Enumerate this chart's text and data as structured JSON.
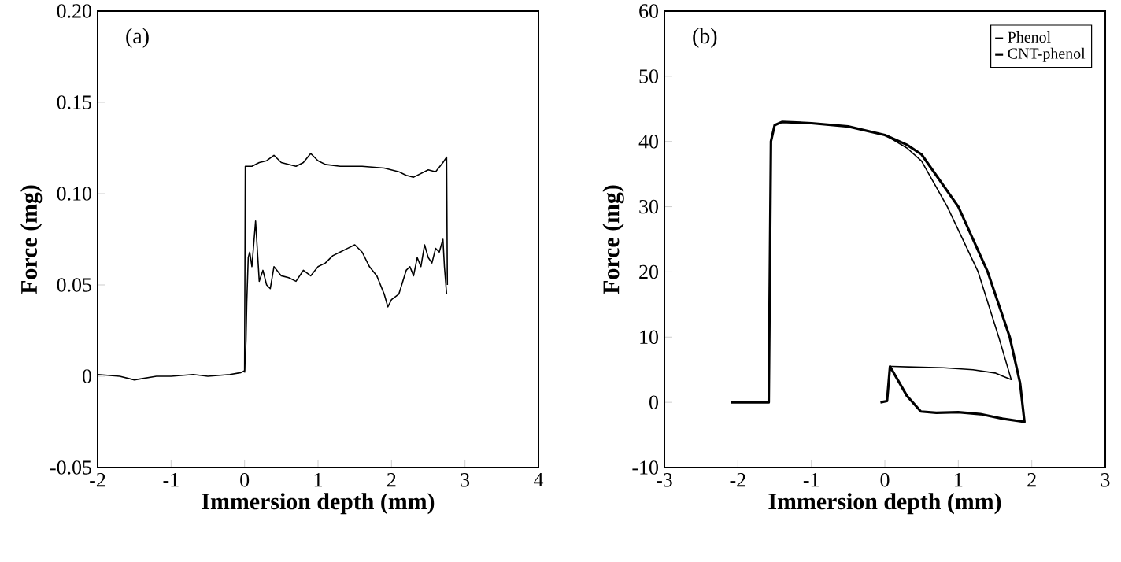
{
  "chart_data": [
    {
      "type": "line",
      "xlabel": "Immersion depth (mm)",
      "ylabel": "Force (mg)",
      "annotations": [
        "(a)"
      ],
      "xlim": [
        -2,
        4
      ],
      "ylim": [
        -0.05,
        0.2
      ],
      "xticks": [
        -2,
        -1,
        0,
        1,
        2,
        3,
        4
      ],
      "yticks": [
        -0.05,
        0,
        0.05,
        {
          "value": 0.1,
          "label": "0.10"
        },
        0.15,
        {
          "value": 0.2,
          "label": "0.20"
        }
      ],
      "marker": "none",
      "line_style": "solid",
      "legend": false,
      "series": [
        {
          "color": "#000000",
          "x": [
            -2,
            -1.7,
            -1.5,
            -1.2,
            -1,
            -0.7,
            -0.5,
            -0.2,
            -0.05,
            0,
            0.01,
            0.1,
            0.2,
            0.3,
            0.4,
            0.5,
            0.6,
            0.7,
            0.8,
            0.9,
            1.0,
            1.1,
            1.3,
            1.6,
            1.9,
            2.1,
            2.2,
            2.3,
            2.4,
            2.5,
            2.6,
            2.7,
            2.75,
            2.76
          ],
          "values": [
            0.001,
            0,
            -0.002,
            0,
            0,
            0.001,
            0,
            0.001,
            0.002,
            0.003,
            0.115,
            0.115,
            0.117,
            0.118,
            0.121,
            0.117,
            0.116,
            0.115,
            0.117,
            0.122,
            0.118,
            0.116,
            0.115,
            0.115,
            0.114,
            0.112,
            0.11,
            0.109,
            0.111,
            0.113,
            0.112,
            0.117,
            0.12,
            0.05
          ]
        },
        {
          "color": "#000000",
          "x": [
            0,
            0.02,
            0.03,
            0.05,
            0.07,
            0.1,
            0.12,
            0.15,
            0.2,
            0.25,
            0.3,
            0.35,
            0.4,
            0.5,
            0.6,
            0.7,
            0.8,
            0.9,
            1.0,
            1.1,
            1.2,
            1.3,
            1.4,
            1.5,
            1.6,
            1.7,
            1.8,
            1.85,
            1.9,
            1.95,
            2.0,
            2.1,
            2.2,
            2.25,
            2.3,
            2.35,
            2.4,
            2.45,
            2.5,
            2.55,
            2.6,
            2.65,
            2.7,
            2.72,
            2.75
          ],
          "values": [
            0.002,
            0.02,
            0.04,
            0.065,
            0.068,
            0.06,
            0.07,
            0.085,
            0.052,
            0.058,
            0.05,
            0.048,
            0.06,
            0.055,
            0.054,
            0.052,
            0.058,
            0.055,
            0.06,
            0.062,
            0.066,
            0.068,
            0.07,
            0.072,
            0.068,
            0.06,
            0.055,
            0.05,
            0.045,
            0.038,
            0.042,
            0.045,
            0.058,
            0.06,
            0.055,
            0.065,
            0.06,
            0.072,
            0.065,
            0.062,
            0.07,
            0.068,
            0.075,
            0.06,
            0.045
          ]
        }
      ]
    },
    {
      "type": "line",
      "xlabel": "Immersion depth (mm)",
      "ylabel": "Force (mg)",
      "annotations": [
        "(b)"
      ],
      "xlim": [
        -3,
        3
      ],
      "ylim": [
        -10,
        60
      ],
      "xticks": [
        -3,
        -2,
        -1,
        0,
        1,
        2,
        3
      ],
      "yticks": [
        -10,
        0,
        10,
        20,
        30,
        40,
        50,
        60
      ],
      "marker": "none",
      "line_style": "solid",
      "legend": "top right",
      "series": [
        {
          "name": "Phenol",
          "color": "#000000",
          "x": [
            -2.1,
            -1.58,
            -1.55,
            -1.5,
            -1.4,
            -1,
            -0.5,
            0,
            0.3,
            0.5,
            0.85,
            1.27,
            1.55,
            1.72,
            1.5,
            1.2,
            0.8,
            0.4,
            0.1,
            0.07
          ],
          "values": [
            0,
            0,
            40,
            42.5,
            43,
            42.8,
            42.3,
            41,
            39,
            37,
            30,
            20,
            10,
            3.5,
            4.5,
            5,
            5.3,
            5.4,
            5.5,
            5.5
          ]
        },
        {
          "name": "CNT-phenol",
          "color": "#000000",
          "x": [
            -2.1,
            -1.58,
            -1.55,
            -1.5,
            -1.4,
            -1,
            -0.5,
            0,
            0.3,
            0.5,
            1.0,
            1.4,
            1.7,
            1.84,
            1.9,
            1.6,
            1.3,
            1.0,
            0.7,
            0.49,
            0.3,
            0.07,
            0.03,
            -0.06
          ],
          "values": [
            0,
            0,
            40,
            42.5,
            43,
            42.8,
            42.3,
            41,
            39.5,
            38,
            30,
            20,
            10,
            3,
            -3,
            -2.5,
            -1.8,
            -1.5,
            -1.6,
            -1.4,
            1,
            5.5,
            0.2,
            0
          ]
        }
      ]
    }
  ]
}
